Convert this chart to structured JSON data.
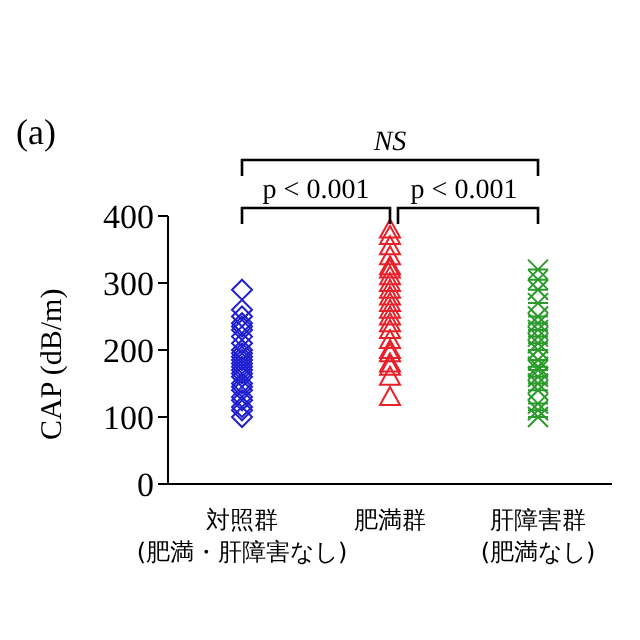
{
  "chart_data": {
    "type": "scatter",
    "ylabel": "CAP (dB/m)",
    "categories": [
      "対照群\n(肥満・肝障害なし)",
      "肥満群",
      "肝障害群\n(肥満なし)"
    ],
    "ylim": [
      0,
      400
    ],
    "yticks": [
      0,
      100,
      200,
      300,
      400
    ],
    "grid": false,
    "legend": false,
    "annotations": [
      "(a)",
      "NS",
      "p < 0.001",
      "p < 0.001"
    ],
    "series": [
      {
        "color": "#1f1fd0",
        "marker": "diamond",
        "x": [
          "対照群\n(肥満・肝障害なし)",
          "対照群\n(肥満・肝障害なし)",
          "対照群\n(肥満・肝障害なし)",
          "対照群\n(肥満・肝障害なし)",
          "対照群\n(肥満・肝障害なし)",
          "対照群\n(肥満・肝障害なし)",
          "対照群\n(肥満・肝障害なし)",
          "対照群\n(肥満・肝障害なし)",
          "対照群\n(肥満・肝障害なし)",
          "対照群\n(肥満・肝障害なし)",
          "対照群\n(肥満・肝障害なし)",
          "対照群\n(肥満・肝障害なし)",
          "対照群\n(肥満・肝障害なし)",
          "対照群\n(肥満・肝障害なし)",
          "対照群\n(肥満・肝障害なし)",
          "対照群\n(肥満・肝障害なし)",
          "対照群\n(肥満・肝障害なし)",
          "対照群\n(肥満・肝障害なし)",
          "対照群\n(肥満・肝障害なし)",
          "対照群\n(肥満・肝障害なし)",
          "対照群\n(肥満・肝障害なし)",
          "対照群\n(肥満・肝障害なし)",
          "対照群\n(肥満・肝障害なし)",
          "対照群\n(肥満・肝障害なし)",
          "対照群\n(肥満・肝障害なし)"
        ],
        "values": [
          290,
          260,
          250,
          240,
          235,
          230,
          220,
          210,
          200,
          195,
          190,
          185,
          180,
          175,
          170,
          165,
          160,
          150,
          145,
          140,
          130,
          125,
          115,
          110,
          100
        ]
      },
      {
        "color": "#e8202a",
        "marker": "triangle",
        "x": [
          "肥満群",
          "肥満群",
          "肥満群",
          "肥満群",
          "肥満群",
          "肥満群",
          "肥満群",
          "肥満群",
          "肥満群",
          "肥満群",
          "肥満群",
          "肥満群",
          "肥満群",
          "肥満群",
          "肥満群",
          "肥満群",
          "肥満群",
          "肥満群",
          "肥満群",
          "肥満群",
          "肥満群",
          "肥満群"
        ],
        "values": [
          380,
          370,
          355,
          340,
          325,
          320,
          310,
          300,
          290,
          280,
          270,
          260,
          250,
          240,
          230,
          215,
          200,
          195,
          180,
          175,
          160,
          130
        ]
      },
      {
        "color": "#2a9a2a",
        "marker": "cross",
        "x": [
          "肝障害群\n(肥満なし)",
          "肝障害群\n(肥満なし)",
          "肝障害群\n(肥満なし)",
          "肝障害群\n(肥満なし)",
          "肝障害群\n(肥満なし)",
          "肝障害群\n(肥満なし)",
          "肝障害群\n(肥満なし)",
          "肝障害群\n(肥満なし)",
          "肝障害群\n(肥満なし)",
          "肝障害群\n(肥満なし)",
          "肝障害群\n(肥満なし)",
          "肝障害群\n(肥満なし)",
          "肝障害群\n(肥満なし)",
          "肝障害群\n(肥満なし)",
          "肝障害群\n(肥満なし)",
          "肝障害群\n(肥満なし)",
          "肝障害群\n(肥満なし)",
          "肝障害群\n(肥満なし)",
          "肝障害群\n(肥満なし)"
        ],
        "values": [
          320,
          305,
          290,
          270,
          250,
          240,
          230,
          220,
          210,
          200,
          185,
          175,
          170,
          160,
          150,
          140,
          120,
          110,
          100
        ]
      }
    ]
  }
}
